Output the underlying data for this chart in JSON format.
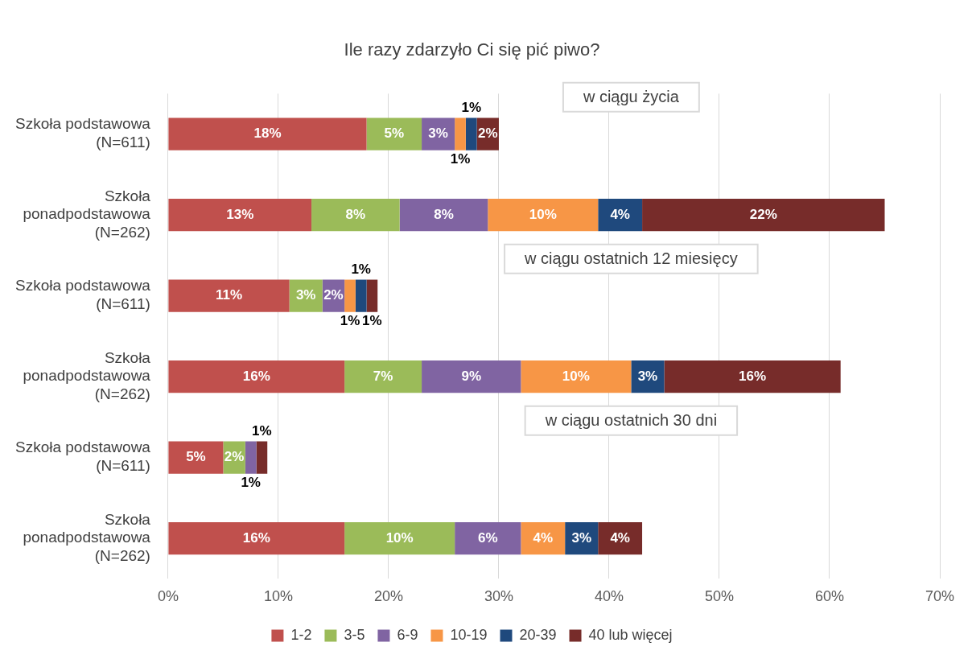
{
  "chart_data": {
    "type": "bar",
    "orientation": "horizontal",
    "stacked": true,
    "title": "Ile razy zdarzyło Ci się pić piwo?",
    "categories": [
      "Szkoła podstawowa (N=611)",
      "Szkoła ponadpodstawowa (N=262)",
      "Szkoła podstawowa (N=611)",
      "Szkoła ponadpodstawowa (N=262)",
      "Szkoła podstawowa (N=611)",
      "Szkoła ponadpodstawowa (N=262)"
    ],
    "series": [
      {
        "name": "1-2",
        "color": "#c0504d",
        "values": [
          18,
          13,
          11,
          16,
          5,
          16
        ],
        "value_labels": [
          "18%",
          "13%",
          "11%",
          "16%",
          "5%",
          "16%"
        ]
      },
      {
        "name": "3-5",
        "color": "#9bbb59",
        "values": [
          5,
          8,
          3,
          7,
          2,
          10
        ],
        "value_labels": [
          "5%",
          "8%",
          "3%",
          "7%",
          "2%",
          "10%"
        ]
      },
      {
        "name": "6-9",
        "color": "#8064a2",
        "values": [
          3,
          8,
          2,
          9,
          1,
          6
        ],
        "value_labels": [
          "3%",
          "8%",
          "2%",
          "9%",
          "1%",
          "6%"
        ]
      },
      {
        "name": "10-19",
        "color": "#f79646",
        "values": [
          1,
          10,
          1,
          10,
          null,
          4
        ],
        "value_labels": [
          "1%",
          "10%",
          "1%",
          "10%",
          null,
          "4%"
        ]
      },
      {
        "name": "20-39",
        "color": "#1f497d",
        "values": [
          1,
          4,
          1,
          3,
          null,
          3
        ],
        "value_labels": [
          "1%",
          "4%",
          "1%",
          "3%",
          null,
          "3%"
        ]
      },
      {
        "name": "40 lub więcej",
        "color": "#772c2a",
        "values": [
          2,
          22,
          1,
          16,
          1,
          4
        ],
        "value_labels": [
          "2%",
          "22%",
          "1%",
          "16%",
          "1%",
          "4%"
        ]
      }
    ],
    "xlim": [
      0,
      70
    ],
    "xticks": [
      {
        "value": 0,
        "label": "0%"
      },
      {
        "value": 10,
        "label": "10%"
      },
      {
        "value": 20,
        "label": "20%"
      },
      {
        "value": 30,
        "label": "30%"
      },
      {
        "value": 40,
        "label": "40%"
      },
      {
        "value": 50,
        "label": "50%"
      },
      {
        "value": 60,
        "label": "60%"
      },
      {
        "value": 70,
        "label": "70%"
      }
    ],
    "annotations": [
      "w ciągu życia",
      "w ciągu ostatnich 12 miesięcy",
      "w ciągu ostatnich 30 dni"
    ],
    "grid": "x",
    "legend": "bottom"
  }
}
